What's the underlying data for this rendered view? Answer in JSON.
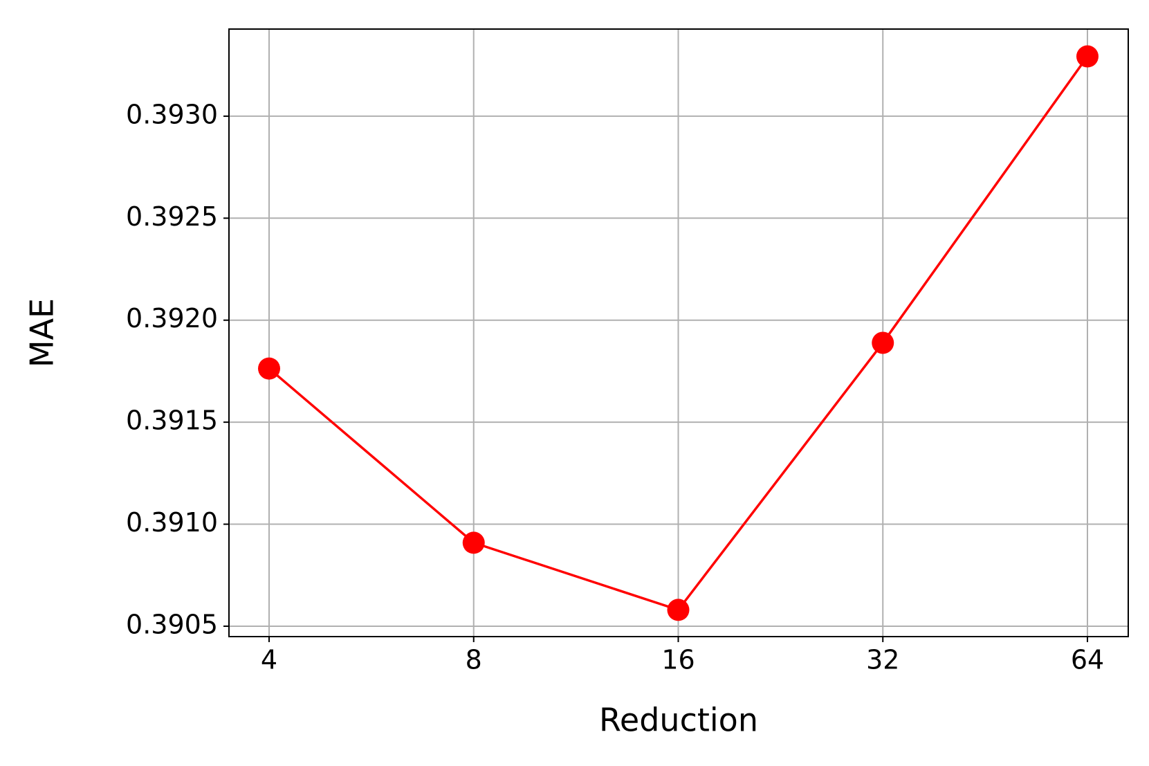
{
  "chart_data": {
    "type": "line",
    "xlabel": "Reduction",
    "ylabel": "MAE",
    "categories": [
      "4",
      "8",
      "16",
      "32",
      "64"
    ],
    "series": [
      {
        "color": "#ff0000",
        "values": [
          0.391763,
          0.390909,
          0.39058,
          0.391889,
          0.393293
        ]
      }
    ],
    "ylim": [
      0.390449,
      0.393427
    ],
    "yticks": [
      0.3905,
      {
        "value": 0.391,
        "label": "0.3910"
      },
      0.3915,
      {
        "value": 0.392,
        "label": "0.3920"
      },
      0.3925,
      {
        "value": 0.393,
        "label": "0.3930"
      }
    ],
    "grid": true
  }
}
